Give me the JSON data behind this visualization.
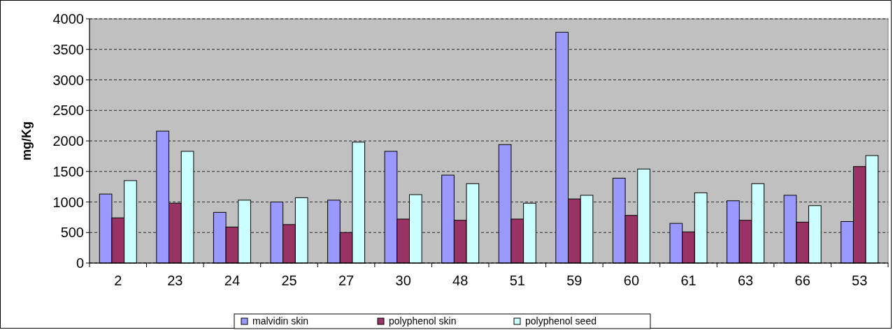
{
  "chart_data": {
    "type": "bar",
    "ylabel": "mg/Kg",
    "categories": [
      "2",
      "23",
      "24",
      "25",
      "27",
      "30",
      "48",
      "51",
      "59",
      "60",
      "61",
      "63",
      "66",
      "53"
    ],
    "series": [
      {
        "name": "malvidin skin",
        "color": "#9999ff",
        "values": [
          1130,
          2160,
          830,
          1000,
          1030,
          1830,
          1440,
          1940,
          3780,
          1390,
          650,
          1020,
          1110,
          680
        ]
      },
      {
        "name": "polyphenol skin",
        "color": "#993366",
        "values": [
          740,
          980,
          590,
          630,
          500,
          720,
          700,
          720,
          1050,
          780,
          510,
          700,
          670,
          1580
        ]
      },
      {
        "name": "polyphenol seed",
        "color": "#ccffff",
        "values": [
          1350,
          1830,
          1030,
          1070,
          1980,
          1120,
          1300,
          980,
          1110,
          1540,
          1150,
          1300,
          940,
          1760
        ]
      }
    ],
    "ylim": [
      0,
      4000
    ],
    "yticks": [
      0,
      500,
      1000,
      1500,
      2000,
      2500,
      3000,
      3500,
      4000
    ],
    "grid": "y",
    "legend": "bottom"
  }
}
